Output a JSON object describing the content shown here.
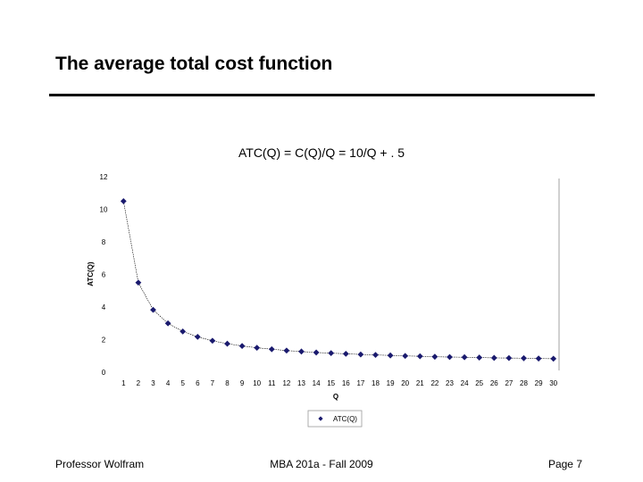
{
  "slide": {
    "title": "The average total cost function"
  },
  "footer": {
    "left": "Professor Wolfram",
    "center": "MBA 201a - Fall 2009",
    "right": "Page 7"
  },
  "chart_data": {
    "type": "scatter",
    "title": "ATC(Q) = C(Q)/Q = 10/Q + . 5",
    "xlabel": "Q",
    "ylabel": "ATC(Q)",
    "ylim": [
      0,
      12
    ],
    "yticks": [
      0,
      2,
      4,
      6,
      8,
      10,
      12
    ],
    "x": [
      1,
      2,
      3,
      4,
      5,
      6,
      7,
      8,
      9,
      10,
      11,
      12,
      13,
      14,
      15,
      16,
      17,
      18,
      19,
      20,
      21,
      22,
      23,
      24,
      25,
      26,
      27,
      28,
      29,
      30
    ],
    "series": [
      {
        "name": "ATC(Q)",
        "color": "#1a1a6e",
        "marker": "diamond",
        "values": [
          10.5,
          5.5,
          3.83,
          3.0,
          2.5,
          2.17,
          1.93,
          1.75,
          1.61,
          1.5,
          1.41,
          1.33,
          1.27,
          1.21,
          1.17,
          1.13,
          1.09,
          1.06,
          1.03,
          1.0,
          0.98,
          0.95,
          0.93,
          0.92,
          0.9,
          0.88,
          0.87,
          0.86,
          0.84,
          0.83
        ]
      }
    ],
    "legend": "bottom-center",
    "grid": false
  }
}
